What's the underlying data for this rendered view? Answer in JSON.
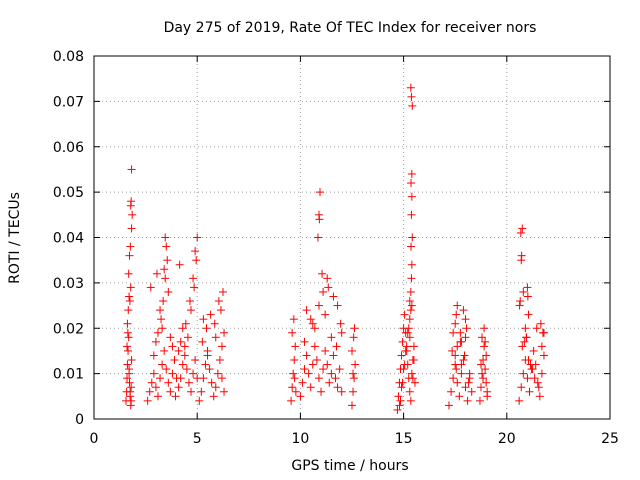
{
  "chart_data": {
    "type": "scatter",
    "title": "Day 275 of 2019, Rate Of TEC Index for receiver nors",
    "xlabel": "GPS time / hours",
    "ylabel": "ROTI / TECUs",
    "xlim": [
      0,
      25
    ],
    "ylim": [
      0,
      0.08
    ],
    "xticks": [
      0,
      5,
      10,
      15,
      20,
      25
    ],
    "xtick_labels": [
      "0",
      "5",
      "10",
      "15",
      "20",
      "25"
    ],
    "yticks": [
      0,
      0.01,
      0.02,
      0.03,
      0.04,
      0.05,
      0.06,
      0.07,
      0.08
    ],
    "ytick_labels": [
      "0",
      "0.01",
      "0.02",
      "0.03",
      "0.04",
      "0.05",
      "0.06",
      "0.07",
      "0.08"
    ],
    "grid": true,
    "marker": "+",
    "marker_color": "#ff0000",
    "series": [
      {
        "name": "ROTI",
        "x": [
          1.55,
          1.58,
          1.6,
          1.62,
          1.65,
          1.68,
          1.7,
          1.72,
          1.75,
          1.78,
          1.8,
          1.62,
          1.66,
          1.7,
          1.74,
          1.78,
          1.82,
          1.6,
          1.64,
          1.7,
          1.75,
          1.8,
          1.68,
          1.72,
          1.76,
          1.82,
          1.85,
          1.8,
          1.82,
          1.78,
          2.6,
          2.7,
          2.8,
          2.9,
          3.0,
          3.1,
          3.2,
          3.3,
          3.4,
          3.5,
          3.6,
          3.7,
          3.8,
          3.9,
          4.0,
          2.75,
          3.05,
          3.25,
          3.35,
          3.45,
          3.55,
          3.5,
          3.45,
          3.4,
          3.6,
          3.7,
          3.8,
          3.3,
          3.2,
          3.1,
          3.0,
          2.9,
          3.95,
          4.1,
          4.2,
          4.3,
          4.4,
          4.5,
          4.6,
          4.7,
          4.8,
          4.9,
          5.0,
          4.15,
          4.45,
          4.65,
          4.85,
          4.95,
          5.0,
          4.9,
          4.8,
          4.7,
          4.55,
          4.4,
          4.3,
          4.2,
          4.1,
          5.1,
          5.2,
          5.3,
          5.4,
          5.5,
          5.6,
          5.7,
          5.8,
          5.9,
          6.0,
          6.1,
          6.2,
          6.3,
          5.25,
          5.45,
          5.65,
          5.85,
          6.05,
          6.15,
          6.25,
          6.3,
          6.2,
          5.9,
          5.5,
          5.3,
          9.55,
          9.6,
          9.65,
          9.7,
          9.75,
          9.6,
          9.68,
          9.72,
          9.78,
          10.0,
          10.1,
          10.2,
          10.3,
          10.4,
          10.5,
          10.6,
          10.7,
          10.8,
          10.9,
          11.0,
          11.1,
          11.2,
          11.3,
          11.4,
          11.5,
          11.6,
          11.7,
          11.8,
          11.9,
          12.0,
          10.85,
          10.9,
          10.95,
          10.92,
          11.05,
          11.1,
          11.3,
          11.35,
          11.6,
          11.8,
          11.95,
          10.3,
          10.5,
          10.7,
          10.9,
          11.2,
          11.5,
          11.75,
          12.0,
          10.2,
          10.6,
          12.5,
          12.55,
          12.6,
          12.65,
          12.5,
          12.58,
          12.62,
          12.55,
          14.7,
          14.75,
          14.8,
          14.85,
          14.9,
          14.95,
          15.0,
          15.05,
          15.1,
          15.15,
          15.2,
          15.25,
          15.3,
          15.35,
          15.4,
          15.45,
          15.5,
          15.55,
          14.8,
          14.9,
          15.0,
          15.1,
          15.2,
          15.3,
          15.4,
          15.5,
          14.85,
          14.95,
          15.05,
          15.15,
          15.25,
          15.35,
          15.45,
          15.35,
          15.38,
          15.4,
          15.36,
          15.42,
          15.38,
          15.4,
          15.36,
          15.4,
          15.42,
          15.38,
          15.35,
          15.3,
          15.3,
          17.2,
          17.3,
          17.4,
          17.5,
          17.6,
          17.7,
          17.8,
          17.9,
          18.0,
          18.1,
          18.2,
          18.3,
          17.35,
          17.55,
          17.75,
          17.95,
          18.15,
          17.4,
          17.6,
          17.8,
          18.0,
          18.2,
          17.5,
          17.9,
          17.55,
          17.6,
          17.75,
          17.8,
          18.0,
          18.05,
          17.5,
          18.7,
          18.75,
          18.8,
          18.85,
          18.9,
          18.95,
          19.0,
          19.05,
          18.8,
          18.9,
          19.0,
          18.75,
          18.85,
          18.95,
          19.05,
          20.6,
          20.7,
          20.8,
          20.9,
          21.0,
          21.1,
          21.2,
          21.3,
          21.4,
          21.5,
          21.6,
          21.7,
          21.8,
          20.75,
          20.95,
          21.15,
          21.35,
          21.55,
          21.75,
          20.85,
          21.05,
          21.25,
          21.45,
          21.65,
          20.62,
          20.65,
          20.7,
          20.72,
          20.68,
          20.75,
          20.8,
          21.0,
          21.02,
          21.05,
          20.9,
          20.95,
          21.7,
          21.8
        ],
        "y": [
          0.004,
          0.006,
          0.009,
          0.012,
          0.015,
          0.018,
          0.011,
          0.008,
          0.005,
          0.003,
          0.007,
          0.021,
          0.024,
          0.027,
          0.026,
          0.029,
          0.013,
          0.016,
          0.019,
          0.01,
          0.006,
          0.004,
          0.032,
          0.036,
          0.038,
          0.042,
          0.045,
          0.048,
          0.055,
          0.047,
          0.004,
          0.006,
          0.008,
          0.01,
          0.007,
          0.005,
          0.009,
          0.012,
          0.015,
          0.011,
          0.008,
          0.006,
          0.01,
          0.013,
          0.009,
          0.029,
          0.032,
          0.022,
          0.026,
          0.031,
          0.035,
          0.038,
          0.04,
          0.033,
          0.028,
          0.018,
          0.016,
          0.02,
          0.024,
          0.019,
          0.017,
          0.014,
          0.005,
          0.007,
          0.009,
          0.012,
          0.014,
          0.011,
          0.008,
          0.006,
          0.01,
          0.013,
          0.009,
          0.034,
          0.021,
          0.026,
          0.029,
          0.035,
          0.04,
          0.037,
          0.031,
          0.024,
          0.018,
          0.016,
          0.02,
          0.017,
          0.015,
          0.004,
          0.006,
          0.009,
          0.012,
          0.015,
          0.011,
          0.008,
          0.005,
          0.007,
          0.01,
          0.013,
          0.009,
          0.006,
          0.017,
          0.02,
          0.023,
          0.021,
          0.026,
          0.024,
          0.028,
          0.019,
          0.016,
          0.018,
          0.014,
          0.022,
          0.004,
          0.007,
          0.01,
          0.013,
          0.016,
          0.019,
          0.022,
          0.009,
          0.006,
          0.005,
          0.008,
          0.011,
          0.014,
          0.01,
          0.007,
          0.012,
          0.016,
          0.013,
          0.009,
          0.006,
          0.011,
          0.015,
          0.012,
          0.008,
          0.01,
          0.014,
          0.009,
          0.007,
          0.011,
          0.006,
          0.04,
          0.045,
          0.05,
          0.044,
          0.032,
          0.028,
          0.031,
          0.029,
          0.027,
          0.025,
          0.021,
          0.024,
          0.022,
          0.02,
          0.025,
          0.023,
          0.018,
          0.016,
          0.019,
          0.017,
          0.021,
          0.003,
          0.006,
          0.009,
          0.012,
          0.015,
          0.018,
          0.02,
          0.01,
          0.002,
          0.005,
          0.008,
          0.011,
          0.014,
          0.017,
          0.02,
          0.023,
          0.019,
          0.015,
          0.012,
          0.009,
          0.006,
          0.004,
          0.01,
          0.013,
          0.016,
          0.008,
          0.003,
          0.007,
          0.011,
          0.015,
          0.019,
          0.022,
          0.025,
          0.013,
          0.004,
          0.008,
          0.012,
          0.016,
          0.02,
          0.024,
          0.009,
          0.028,
          0.031,
          0.034,
          0.038,
          0.04,
          0.045,
          0.049,
          0.052,
          0.054,
          0.069,
          0.071,
          0.073,
          0.018,
          0.026,
          0.003,
          0.006,
          0.009,
          0.012,
          0.008,
          0.005,
          0.01,
          0.013,
          0.007,
          0.004,
          0.009,
          0.006,
          0.015,
          0.011,
          0.017,
          0.014,
          0.008,
          0.019,
          0.016,
          0.012,
          0.018,
          0.01,
          0.021,
          0.024,
          0.023,
          0.025,
          0.019,
          0.017,
          0.022,
          0.02,
          0.014,
          0.004,
          0.007,
          0.01,
          0.013,
          0.016,
          0.011,
          0.008,
          0.005,
          0.018,
          0.02,
          0.014,
          0.012,
          0.009,
          0.017,
          0.006,
          0.004,
          0.007,
          0.01,
          0.013,
          0.009,
          0.006,
          0.011,
          0.015,
          0.012,
          0.008,
          0.005,
          0.01,
          0.014,
          0.016,
          0.018,
          0.012,
          0.009,
          0.007,
          0.019,
          0.017,
          0.013,
          0.011,
          0.02,
          0.021,
          0.025,
          0.026,
          0.035,
          0.036,
          0.041,
          0.042,
          0.028,
          0.029,
          0.027,
          0.023,
          0.02,
          0.018,
          0.016,
          0.019
        ]
      }
    ]
  }
}
